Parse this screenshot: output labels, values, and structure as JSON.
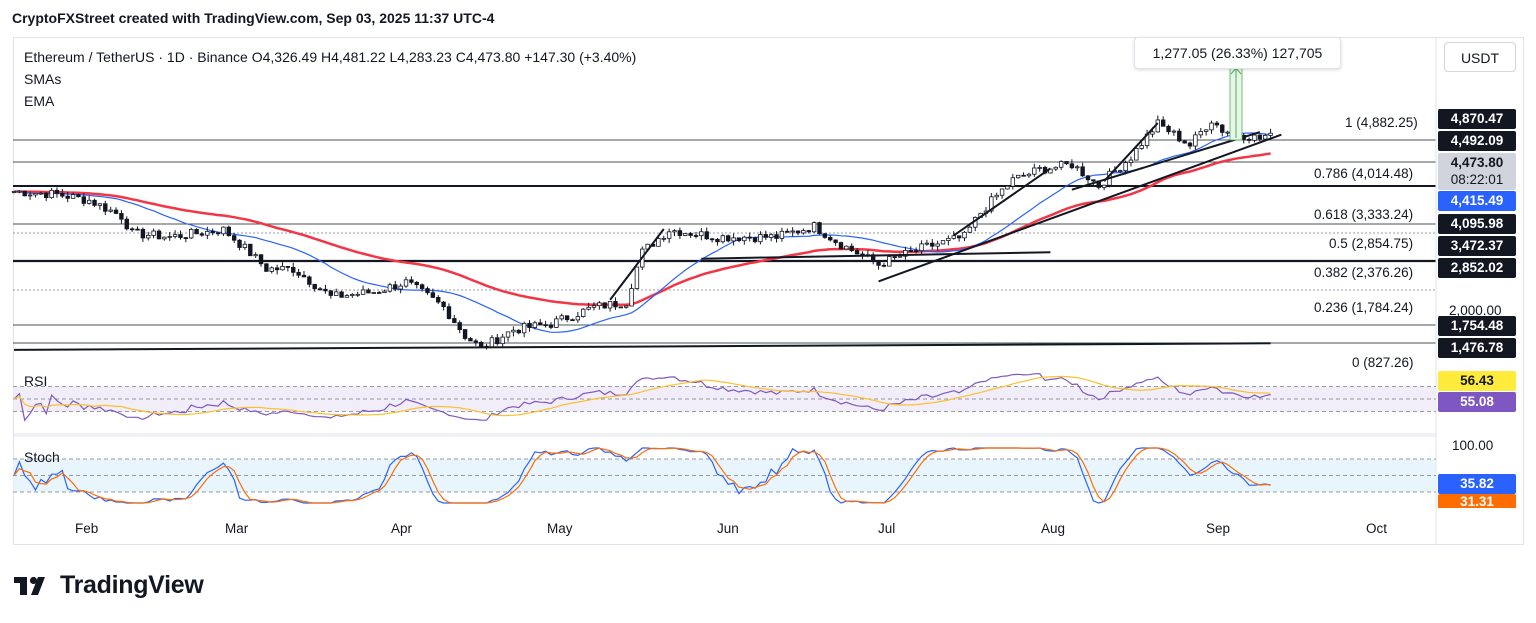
{
  "header": {
    "credit": "CryptoFXStreet created with TradingView.com, Sep 03, 2025 11:37 UTC-4"
  },
  "legend": {
    "symbol": "Ethereum / TetherUS · 1D · Binance",
    "open": "O4,326.49",
    "high": "H4,481.22",
    "low": "L4,283.23",
    "close": "C4,473.80",
    "change": "+147.30 (+3.40%)",
    "indicators": [
      "SMAs",
      "EMA"
    ]
  },
  "currency": "USDT",
  "measure_tooltip": "1,277.05 (26.33%) 127,705",
  "fib_levels": [
    {
      "ratio": "1",
      "price": 4882.25,
      "label": "1 (4,882.25)"
    },
    {
      "ratio": "0.786",
      "price": 4014.48,
      "label": "0.786 (4,014.48)"
    },
    {
      "ratio": "0.618",
      "price": 3333.24,
      "label": "0.618 (3,333.24)"
    },
    {
      "ratio": "0.5",
      "price": 2854.75,
      "label": "0.5 (2,854.75)"
    },
    {
      "ratio": "0.382",
      "price": 2376.26,
      "label": "0.382 (2,376.26)"
    },
    {
      "ratio": "0.236",
      "price": 1784.24,
      "label": "0.236 (1,784.24)"
    },
    {
      "ratio": "0",
      "price": 827.26,
      "label": "0 (827.26)"
    }
  ],
  "price_badges": [
    {
      "label": "4,870.47",
      "value": 4870.47,
      "bg": "#131722",
      "fg": "#ffffff"
    },
    {
      "label": "4,492.09",
      "value": 4492.09,
      "bg": "#131722",
      "fg": "#ffffff"
    },
    {
      "label": "4,473.80",
      "value": 4473.8,
      "bg": "#d1d4dc",
      "fg": "#131722"
    },
    {
      "label": "08:22:01",
      "value": 4473.8,
      "bg": "#d1d4dc",
      "fg": "#131722"
    },
    {
      "label": "4,415.49",
      "value": 4415.49,
      "bg": "#2962ff",
      "fg": "#ffffff"
    },
    {
      "label": "4,095.98",
      "value": 4095.98,
      "bg": "#131722",
      "fg": "#ffffff"
    },
    {
      "label": "3,472.37",
      "value": 3472.37,
      "bg": "#131722",
      "fg": "#ffffff"
    },
    {
      "label": "2,852.02",
      "value": 2852.02,
      "bg": "#131722",
      "fg": "#ffffff"
    },
    {
      "label": "1,754.48",
      "value": 1754.48,
      "bg": "#131722",
      "fg": "#ffffff"
    },
    {
      "label": "1,476.78",
      "value": 1476.78,
      "bg": "#131722",
      "fg": "#ffffff"
    }
  ],
  "y_axis_tick": "2,000.00",
  "rsi": {
    "label": "RSI",
    "values": [
      "56.43",
      "55.08"
    ],
    "colors": [
      "#ffeb3b",
      "#7e57c2"
    ]
  },
  "stoch": {
    "label": "Stoch",
    "top": "100.00",
    "values": [
      "35.82",
      "31.31"
    ],
    "colors": [
      "#2962ff",
      "#ff6d00"
    ]
  },
  "months": [
    "Feb",
    "Mar",
    "Apr",
    "May",
    "Jun",
    "Jul",
    "Aug",
    "Sep",
    "Oct"
  ],
  "brand": "TradingView",
  "chart_data": {
    "type": "candlestick",
    "symbol": "Ethereum / TetherUS",
    "timeframe": "1D",
    "x_range": [
      "2025-01-12",
      "2025-09-03"
    ],
    "ylim": [
      900,
      5200
    ],
    "close_anchors": [
      [
        "2025-01-12",
        3300
      ],
      [
        "2025-01-20",
        3250
      ],
      [
        "2025-01-26",
        3150
      ],
      [
        "2025-02-01",
        2900
      ],
      [
        "2025-02-03",
        2650
      ],
      [
        "2025-02-10",
        2600
      ],
      [
        "2025-02-20",
        2700
      ],
      [
        "2025-02-28",
        2200
      ],
      [
        "2025-03-05",
        2200
      ],
      [
        "2025-03-12",
        1900
      ],
      [
        "2025-03-20",
        1950
      ],
      [
        "2025-03-26",
        2050
      ],
      [
        "2025-04-02",
        1800
      ],
      [
        "2025-04-06",
        1550
      ],
      [
        "2025-04-09",
        1450
      ],
      [
        "2025-04-15",
        1600
      ],
      [
        "2025-04-22",
        1650
      ],
      [
        "2025-04-30",
        1800
      ],
      [
        "2025-05-06",
        1850
      ],
      [
        "2025-05-09",
        2400
      ],
      [
        "2025-05-14",
        2700
      ],
      [
        "2025-05-23",
        2600
      ],
      [
        "2025-06-03",
        2600
      ],
      [
        "2025-06-10",
        2750
      ],
      [
        "2025-06-15",
        2500
      ],
      [
        "2025-06-22",
        2250
      ],
      [
        "2025-06-30",
        2450
      ],
      [
        "2025-07-08",
        2600
      ],
      [
        "2025-07-11",
        2950
      ],
      [
        "2025-07-17",
        3500
      ],
      [
        "2025-07-22",
        3700
      ],
      [
        "2025-07-28",
        3800
      ],
      [
        "2025-08-02",
        3400
      ],
      [
        "2025-08-08",
        3950
      ],
      [
        "2025-08-13",
        4700
      ],
      [
        "2025-08-19",
        4200
      ],
      [
        "2025-08-23",
        4800
      ],
      [
        "2025-08-25",
        4550
      ],
      [
        "2025-09-01",
        4350
      ],
      [
        "2025-09-03",
        4473.8
      ]
    ],
    "trendlines": [
      {
        "from": [
          "2025-01-12",
          1440
        ],
        "to": [
          "2025-09-03",
          1490
        ]
      },
      {
        "from": [
          "2025-06-22",
          2060
        ],
        "to": [
          "2025-09-05",
          4440
        ]
      },
      {
        "from": [
          "2025-07-28",
          3330
        ],
        "to": [
          "2025-09-01",
          4500
        ]
      },
      {
        "from": [
          "2025-05-03",
          1870
        ],
        "to": [
          "2025-05-13",
          2710
        ]
      },
      {
        "from": [
          "2025-07-06",
          2620
        ],
        "to": [
          "2025-07-24",
          3720
        ]
      },
      {
        "from": [
          "2025-08-03",
          3480
        ],
        "to": [
          "2025-08-13",
          4720
        ]
      },
      {
        "from": [
          "2025-05-20",
          2320
        ],
        "to": [
          "2025-07-24",
          2400
        ]
      },
      {
        "from": [
          "2025-01-12",
          3300
        ],
        "to": [
          "2025-09-03",
          3300
        ]
      }
    ],
    "ema_color": "#f23645",
    "sma_color": "#2962ff",
    "rsi": {
      "latest": 55.08,
      "ma_latest": 56.43,
      "upper": 70,
      "lower": 30
    },
    "stoch": {
      "k_latest": 35.82,
      "d_latest": 31.31,
      "upper": 80,
      "lower": 20
    }
  }
}
